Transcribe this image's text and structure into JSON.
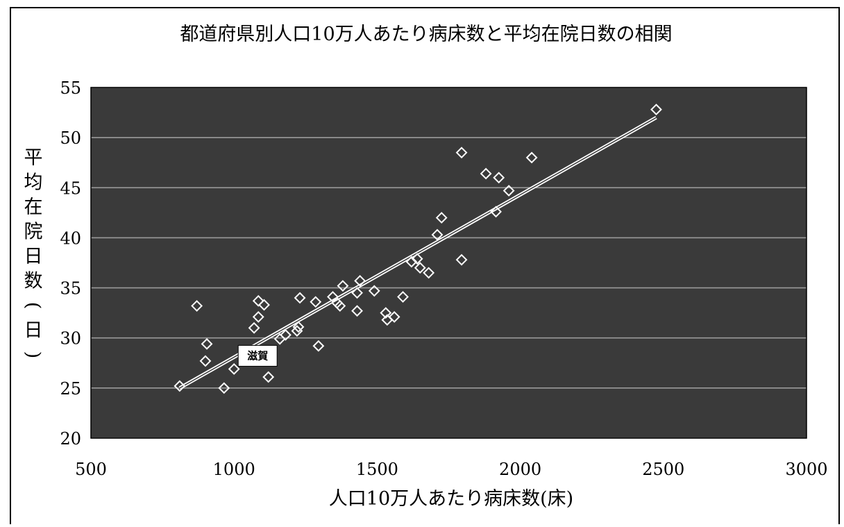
{
  "chart_data": {
    "type": "scatter",
    "title": "都道府県別人口10万人あたり病床数と平均在院日数の相関",
    "xlabel": "人口10万人あたり病床数(床)",
    "ylabel": "平均在院日数(日)",
    "xlim": [
      500,
      3000
    ],
    "ylim": [
      20,
      55
    ],
    "xticks": [
      500,
      1000,
      1500,
      2000,
      2500,
      3000
    ],
    "yticks": [
      20,
      25,
      30,
      35,
      40,
      45,
      50,
      55
    ],
    "grid": true,
    "plot_background": "#3a3a3a",
    "marker_color": "#ffffff",
    "gridline_color": "#9a9a9a",
    "series": [
      {
        "marker": "diamond",
        "points": [
          [
            810,
            25.2
          ],
          [
            870,
            33.2
          ],
          [
            900,
            27.7
          ],
          [
            905,
            29.4
          ],
          [
            965,
            25.0
          ],
          [
            1000,
            26.9
          ],
          [
            1070,
            31.0
          ],
          [
            1085,
            33.7
          ],
          [
            1085,
            32.1
          ],
          [
            1105,
            33.3
          ],
          [
            1120,
            26.1
          ],
          [
            1160,
            29.9
          ],
          [
            1180,
            30.3
          ],
          [
            1220,
            30.7
          ],
          [
            1225,
            31.1
          ],
          [
            1230,
            34.0
          ],
          [
            1285,
            33.6
          ],
          [
            1295,
            29.2
          ],
          [
            1345,
            34.1
          ],
          [
            1360,
            33.5
          ],
          [
            1370,
            33.2
          ],
          [
            1380,
            35.2
          ],
          [
            1430,
            34.5
          ],
          [
            1430,
            32.7
          ],
          [
            1440,
            35.7
          ],
          [
            1490,
            34.7
          ],
          [
            1530,
            32.5
          ],
          [
            1535,
            31.8
          ],
          [
            1560,
            32.1
          ],
          [
            1590,
            34.1
          ],
          [
            1620,
            37.6
          ],
          [
            1640,
            37.9
          ],
          [
            1650,
            37.0
          ],
          [
            1680,
            36.5
          ],
          [
            1710,
            40.3
          ],
          [
            1725,
            42.0
          ],
          [
            1795,
            48.5
          ],
          [
            1795,
            37.8
          ],
          [
            1880,
            46.4
          ],
          [
            1915,
            42.6
          ],
          [
            1925,
            46.0
          ],
          [
            1960,
            44.7
          ],
          [
            2040,
            48.0
          ],
          [
            2475,
            52.8
          ]
        ]
      }
    ],
    "trendline": {
      "x": [
        810,
        2475
      ],
      "y": [
        25.0,
        52.0
      ]
    },
    "annotations": [
      {
        "text": "滋賀",
        "x": 1000,
        "y": 26.9
      }
    ]
  }
}
